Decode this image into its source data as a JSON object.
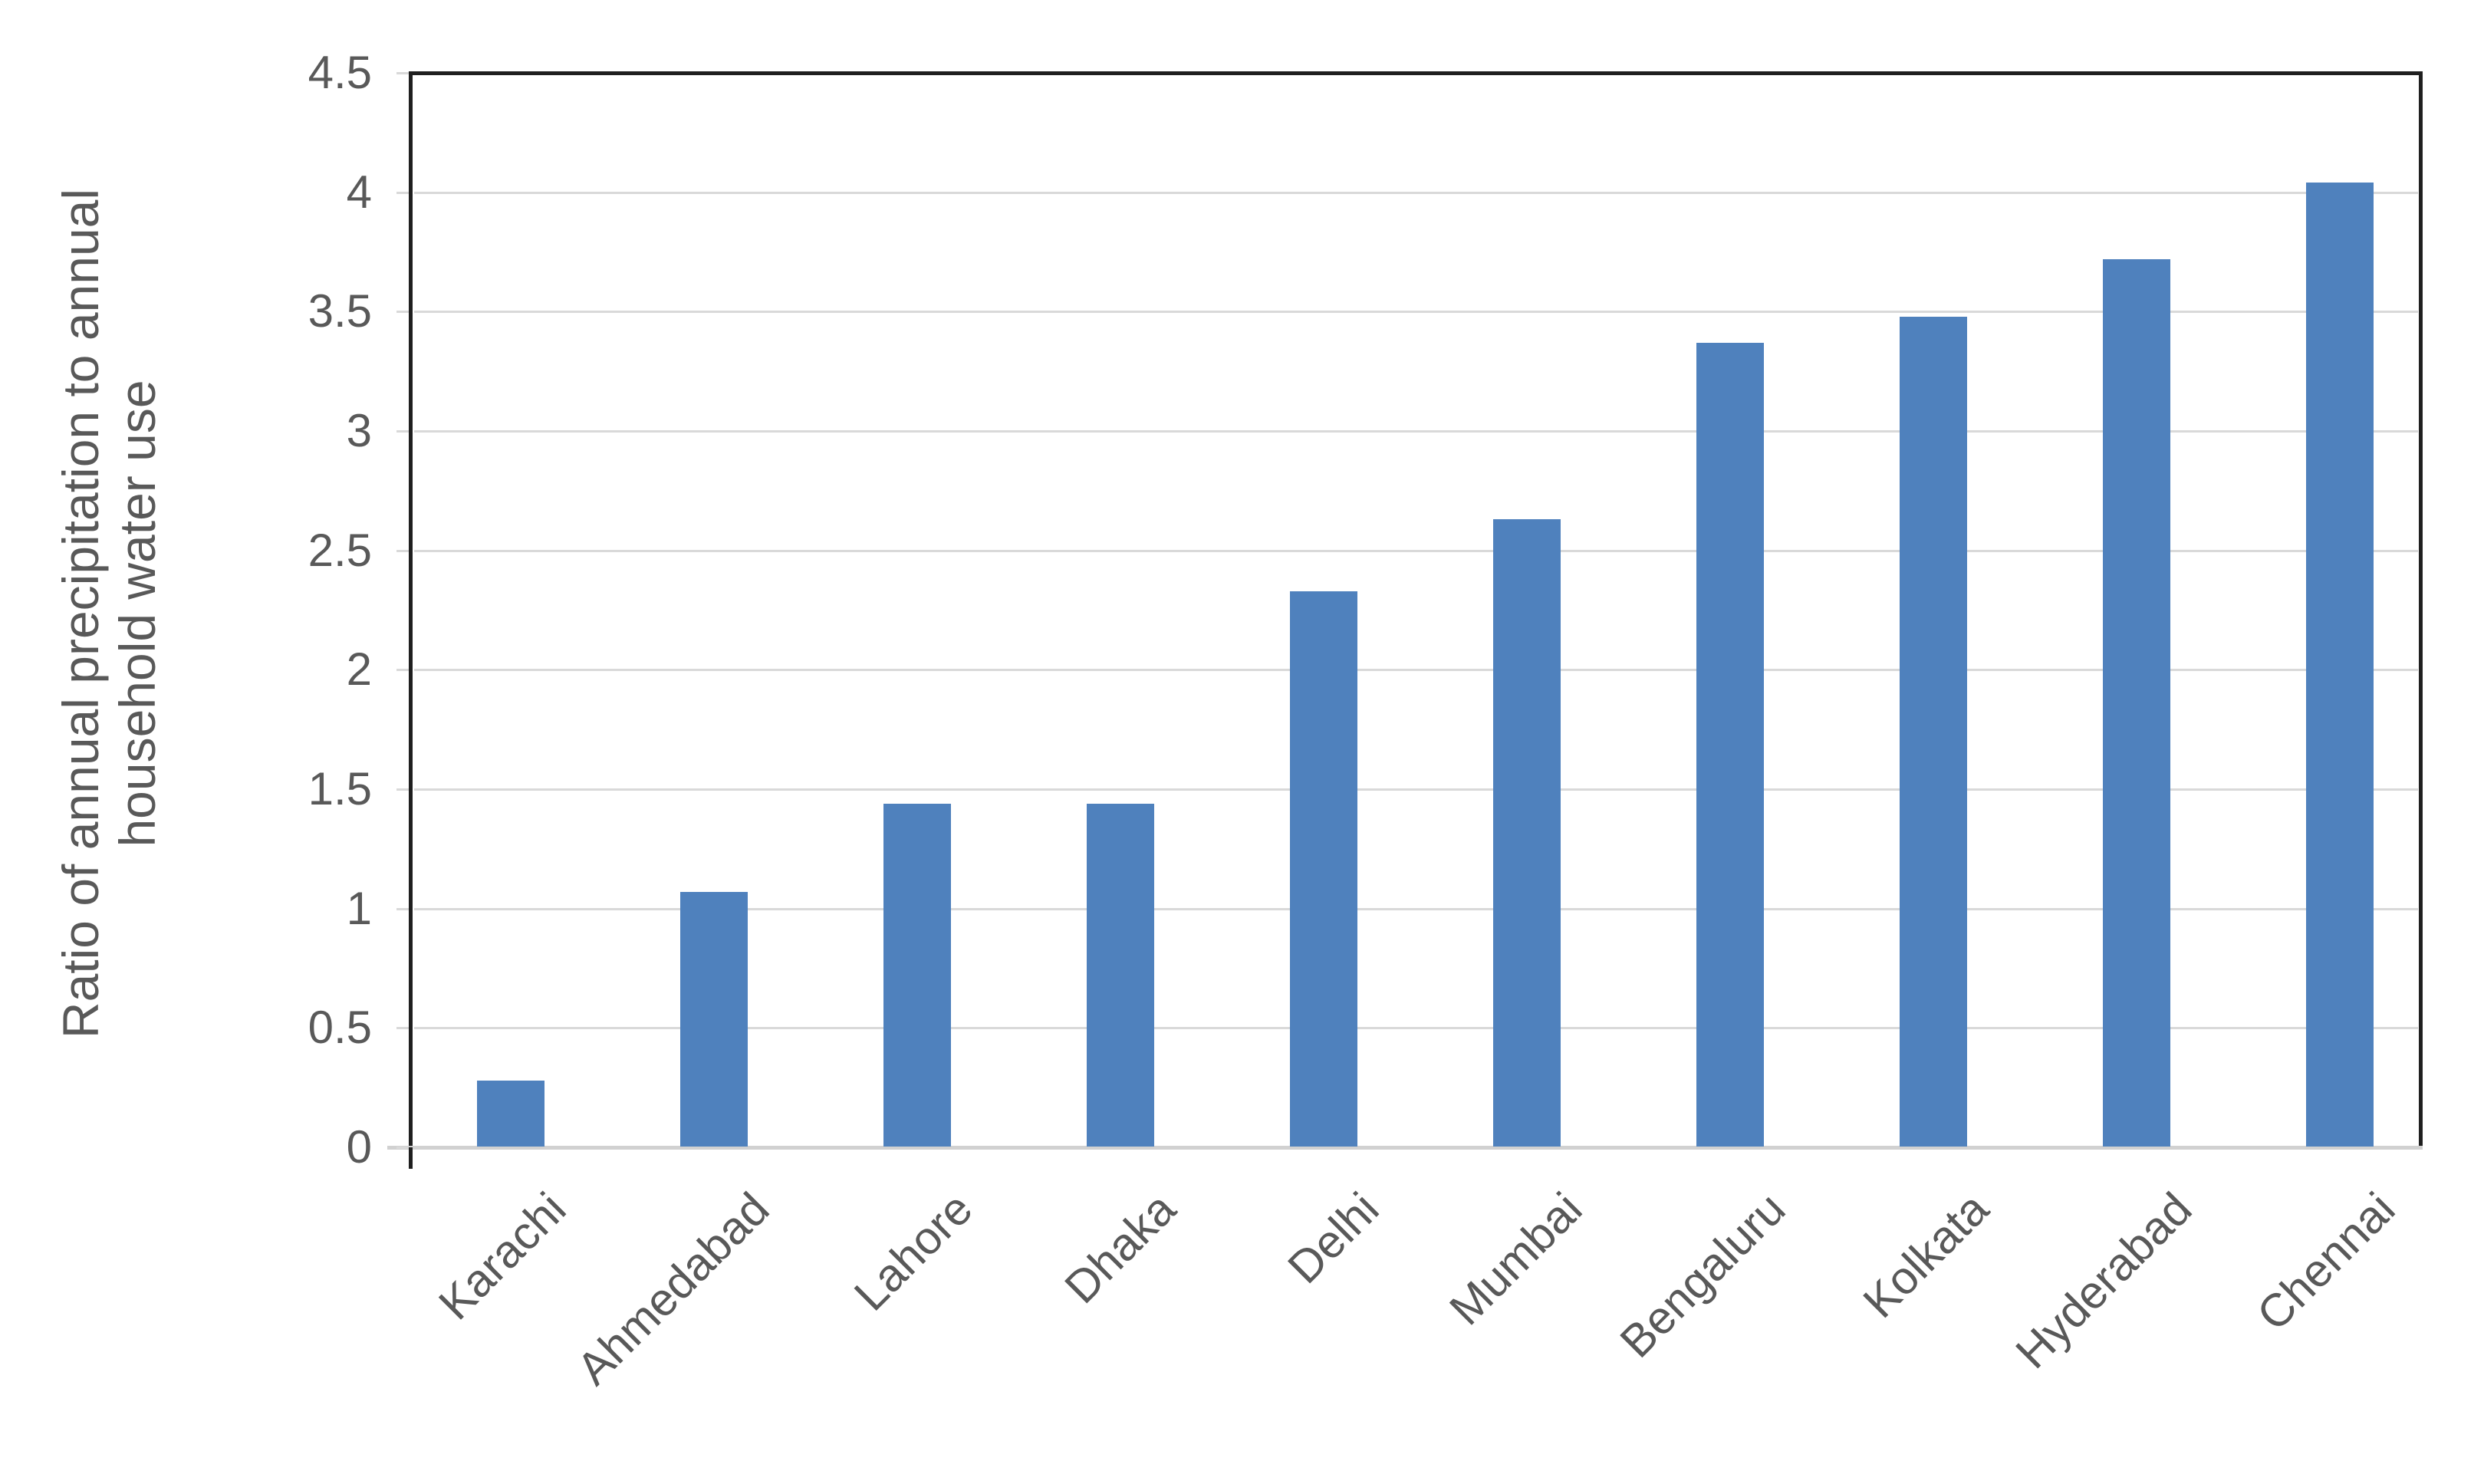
{
  "chart_data": {
    "type": "bar",
    "title": "",
    "categories": [
      "Karachi",
      "Ahmedabad",
      "Lahore",
      "Dhaka",
      "Delhi",
      "Mumbai",
      "Bengaluru",
      "Kolkata",
      "Hyderabad",
      "Chennai"
    ],
    "values": [
      0.28,
      1.07,
      1.44,
      1.44,
      2.33,
      2.63,
      3.37,
      3.48,
      3.72,
      4.04
    ],
    "xlabel": "",
    "ylabel": "Ratio of annual precipitation to annual household water use",
    "ylabel_line1": "Ratio of annual precipitation to annual",
    "ylabel_line2": "household water use",
    "ylim": [
      0,
      4.5
    ],
    "ytick_labels": [
      "4.5",
      "4",
      "3.5",
      "3",
      "2.5",
      "2",
      "1.5",
      "1",
      "0.5",
      "0"
    ],
    "grid": "horizontal",
    "legend_position": "none",
    "colors": {
      "bar": "#4F81BD",
      "gridline": "#D9D9D9",
      "axis_line": "#D1D1D1",
      "text": "#595959",
      "plot_border": "#1F1F1F",
      "background": "#FFFFFF"
    }
  }
}
